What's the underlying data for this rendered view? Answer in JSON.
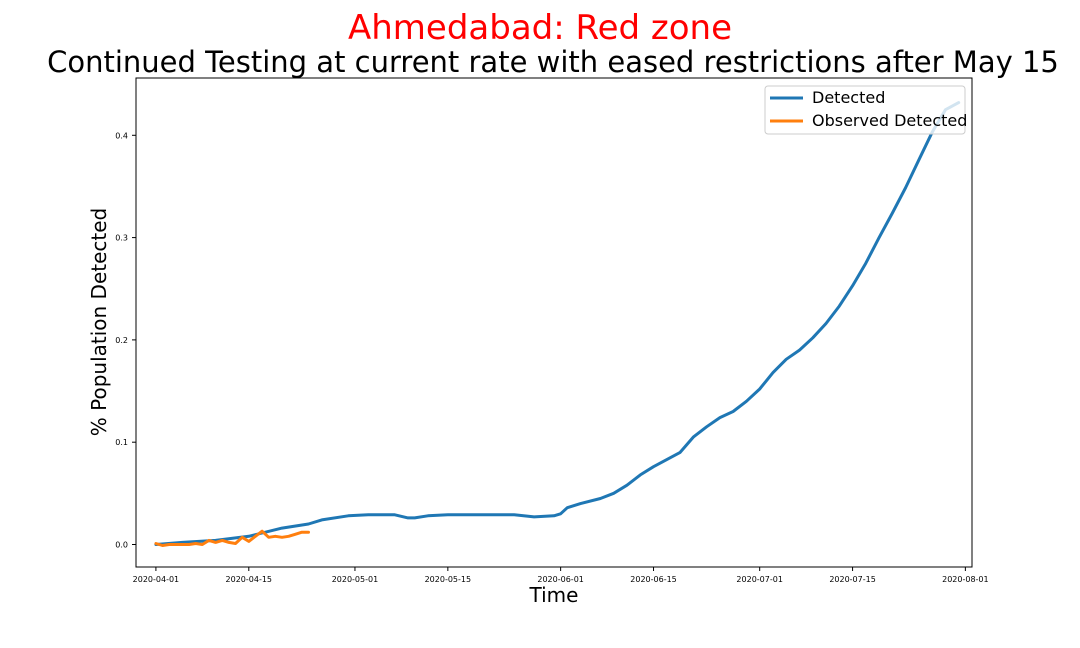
{
  "chart_data": {
    "type": "line",
    "title": "Ahmedabad: Red zone",
    "subtitle": "Continued Testing at current rate with eased restrictions after May 15",
    "xlabel": "Time",
    "ylabel": "% Population Detected",
    "xlim": [
      "2020-03-29",
      "2020-08-02"
    ],
    "ylim": [
      -0.022,
      0.456
    ],
    "x_ticks": [
      "2020-04-01",
      "2020-04-15",
      "2020-05-01",
      "2020-05-15",
      "2020-06-01",
      "2020-06-15",
      "2020-07-01",
      "2020-07-15",
      "2020-08-01"
    ],
    "y_ticks": [
      0.0,
      0.1,
      0.2,
      0.3,
      0.4
    ],
    "y_tick_labels": [
      "0.0",
      "0.1",
      "0.2",
      "0.3",
      "0.4"
    ],
    "grid": false,
    "legend_position": "top-right",
    "series": [
      {
        "name": "Detected",
        "color": "#1f77b4",
        "points": [
          [
            "2020-04-01",
            0.0
          ],
          [
            "2020-04-05",
            0.002
          ],
          [
            "2020-04-10",
            0.004
          ],
          [
            "2020-04-15",
            0.008
          ],
          [
            "2020-04-20",
            0.016
          ],
          [
            "2020-04-24",
            0.02
          ],
          [
            "2020-04-26",
            0.024
          ],
          [
            "2020-04-30",
            0.028
          ],
          [
            "2020-05-03",
            0.029
          ],
          [
            "2020-05-07",
            0.029
          ],
          [
            "2020-05-09",
            0.026
          ],
          [
            "2020-05-10",
            0.026
          ],
          [
            "2020-05-12",
            0.028
          ],
          [
            "2020-05-15",
            0.029
          ],
          [
            "2020-05-19",
            0.029
          ],
          [
            "2020-05-22",
            0.029
          ],
          [
            "2020-05-25",
            0.029
          ],
          [
            "2020-05-28",
            0.027
          ],
          [
            "2020-05-31",
            0.028
          ],
          [
            "2020-06-01",
            0.03
          ],
          [
            "2020-06-02",
            0.036
          ],
          [
            "2020-06-04",
            0.04
          ],
          [
            "2020-06-07",
            0.045
          ],
          [
            "2020-06-09",
            0.05
          ],
          [
            "2020-06-11",
            0.058
          ],
          [
            "2020-06-13",
            0.068
          ],
          [
            "2020-06-15",
            0.076
          ],
          [
            "2020-06-17",
            0.083
          ],
          [
            "2020-06-19",
            0.09
          ],
          [
            "2020-06-21",
            0.105
          ],
          [
            "2020-06-23",
            0.115
          ],
          [
            "2020-06-25",
            0.124
          ],
          [
            "2020-06-27",
            0.13
          ],
          [
            "2020-06-29",
            0.14
          ],
          [
            "2020-07-01",
            0.152
          ],
          [
            "2020-07-03",
            0.168
          ],
          [
            "2020-07-05",
            0.181
          ],
          [
            "2020-07-07",
            0.19
          ],
          [
            "2020-07-09",
            0.202
          ],
          [
            "2020-07-11",
            0.216
          ],
          [
            "2020-07-13",
            0.233
          ],
          [
            "2020-07-15",
            0.253
          ],
          [
            "2020-07-17",
            0.275
          ],
          [
            "2020-07-19",
            0.3
          ],
          [
            "2020-07-21",
            0.324
          ],
          [
            "2020-07-23",
            0.349
          ],
          [
            "2020-07-25",
            0.376
          ],
          [
            "2020-07-27",
            0.403
          ],
          [
            "2020-07-29",
            0.425
          ],
          [
            "2020-07-31",
            0.432
          ]
        ]
      },
      {
        "name": "Observed Detected",
        "color": "#ff7f0e",
        "points": [
          [
            "2020-04-01",
            0.001
          ],
          [
            "2020-04-02",
            -0.001
          ],
          [
            "2020-04-03",
            0.0
          ],
          [
            "2020-04-05",
            0.0
          ],
          [
            "2020-04-06",
            0.0
          ],
          [
            "2020-04-07",
            0.001
          ],
          [
            "2020-04-08",
            0.0
          ],
          [
            "2020-04-09",
            0.004
          ],
          [
            "2020-04-10",
            0.002
          ],
          [
            "2020-04-11",
            0.004
          ],
          [
            "2020-04-12",
            0.002
          ],
          [
            "2020-04-13",
            0.001
          ],
          [
            "2020-04-14",
            0.007
          ],
          [
            "2020-04-15",
            0.003
          ],
          [
            "2020-04-16",
            0.008
          ],
          [
            "2020-04-17",
            0.013
          ],
          [
            "2020-04-18",
            0.007
          ],
          [
            "2020-04-19",
            0.008
          ],
          [
            "2020-04-20",
            0.007
          ],
          [
            "2020-04-21",
            0.008
          ],
          [
            "2020-04-22",
            0.01
          ],
          [
            "2020-04-23",
            0.012
          ],
          [
            "2020-04-24",
            0.012
          ]
        ]
      }
    ]
  }
}
